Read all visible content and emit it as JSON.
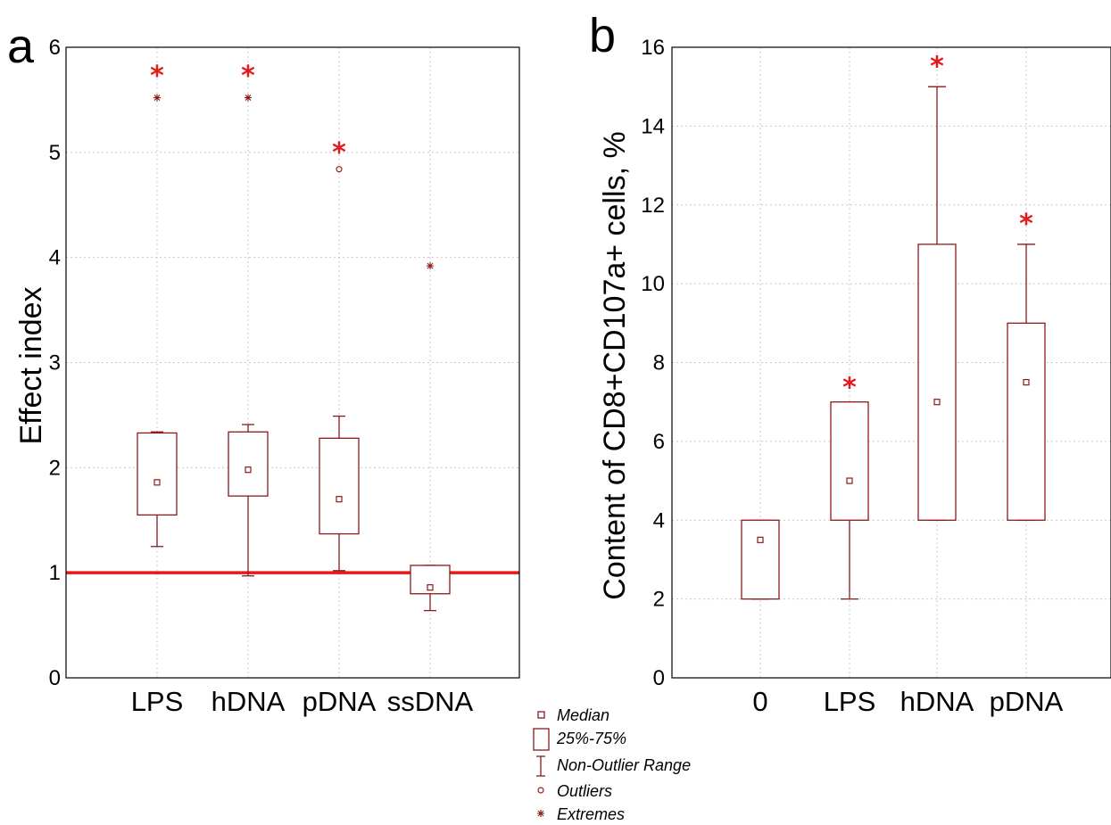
{
  "chart_data": [
    {
      "type": "box",
      "panel": "a",
      "xlabel": "",
      "ylabel": "Effect index",
      "ylim": [
        0,
        6
      ],
      "yticks": [
        "0",
        "1",
        "2",
        "3",
        "4",
        "5",
        "6"
      ],
      "grid": true,
      "categories": [
        "LPS",
        "hDNA",
        "pDNA",
        "ssDNA"
      ],
      "boxes": [
        {
          "category": "LPS",
          "whisker_low": 1.25,
          "q1": 1.55,
          "median": 1.86,
          "q3": 2.33,
          "whisker_high": 2.34,
          "outliers": [],
          "extremes": [
            5.52
          ],
          "significant": true,
          "star_y": 5.78
        },
        {
          "category": "hDNA",
          "whisker_low": 0.97,
          "q1": 1.73,
          "median": 1.98,
          "q3": 2.34,
          "whisker_high": 2.41,
          "outliers": [],
          "extremes": [
            5.52
          ],
          "significant": true,
          "star_y": 5.78
        },
        {
          "category": "pDNA",
          "whisker_low": 1.02,
          "q1": 1.37,
          "median": 1.7,
          "q3": 2.28,
          "whisker_high": 2.49,
          "outliers": [
            4.84
          ],
          "extremes": [],
          "significant": true,
          "star_y": 5.05
        },
        {
          "category": "ssDNA",
          "whisker_low": 0.64,
          "q1": 0.8,
          "median": 0.86,
          "q3": 1.07,
          "whisker_high": 1.07,
          "outliers": [],
          "extremes": [
            3.92
          ],
          "significant": false
        }
      ],
      "reference_line": 1
    },
    {
      "type": "box",
      "panel": "b",
      "xlabel": "",
      "ylabel": "Content of CD8+CD107a+ cells, %",
      "ylim": [
        0,
        16
      ],
      "yticks": [
        "0",
        "2",
        "4",
        "6",
        "8",
        "10",
        "12",
        "14",
        "16"
      ],
      "grid": true,
      "categories": [
        "0",
        "LPS",
        "hDNA",
        "pDNA"
      ],
      "boxes": [
        {
          "category": "0",
          "whisker_low": 2,
          "q1": 2,
          "median": 3.5,
          "q3": 4,
          "whisker_high": 4,
          "outliers": [],
          "extremes": [],
          "significant": false
        },
        {
          "category": "LPS",
          "whisker_low": 2,
          "q1": 4,
          "median": 5,
          "q3": 7,
          "whisker_high": 7,
          "outliers": [],
          "extremes": [],
          "significant": true,
          "star_y": 7.5
        },
        {
          "category": "hDNA",
          "whisker_low": 4,
          "q1": 4,
          "median": 7,
          "q3": 11,
          "whisker_high": 15,
          "outliers": [],
          "extremes": [],
          "significant": true,
          "star_y": 15.65
        },
        {
          "category": "pDNA",
          "whisker_low": 4,
          "q1": 4,
          "median": 7.5,
          "q3": 9,
          "whisker_high": 11,
          "outliers": [],
          "extremes": [],
          "significant": true,
          "star_y": 11.65
        }
      ]
    }
  ],
  "panels": {
    "a": {
      "letter": "a",
      "ylabel": "Effect index"
    },
    "b": {
      "letter": "b",
      "ylabel": "Content of CD8+CD107a+ cells, %"
    }
  },
  "legend": {
    "median": "Median",
    "iqr": "25%-75%",
    "range": "Non-Outlier Range",
    "outliers": "Outliers",
    "extremes": "Extremes"
  },
  "significance_marker": "*",
  "colors": {
    "box": "#8b1a1a",
    "reference_line": "#e41a1c",
    "star": "#e41a1c",
    "grid": "#c8c8c8"
  }
}
